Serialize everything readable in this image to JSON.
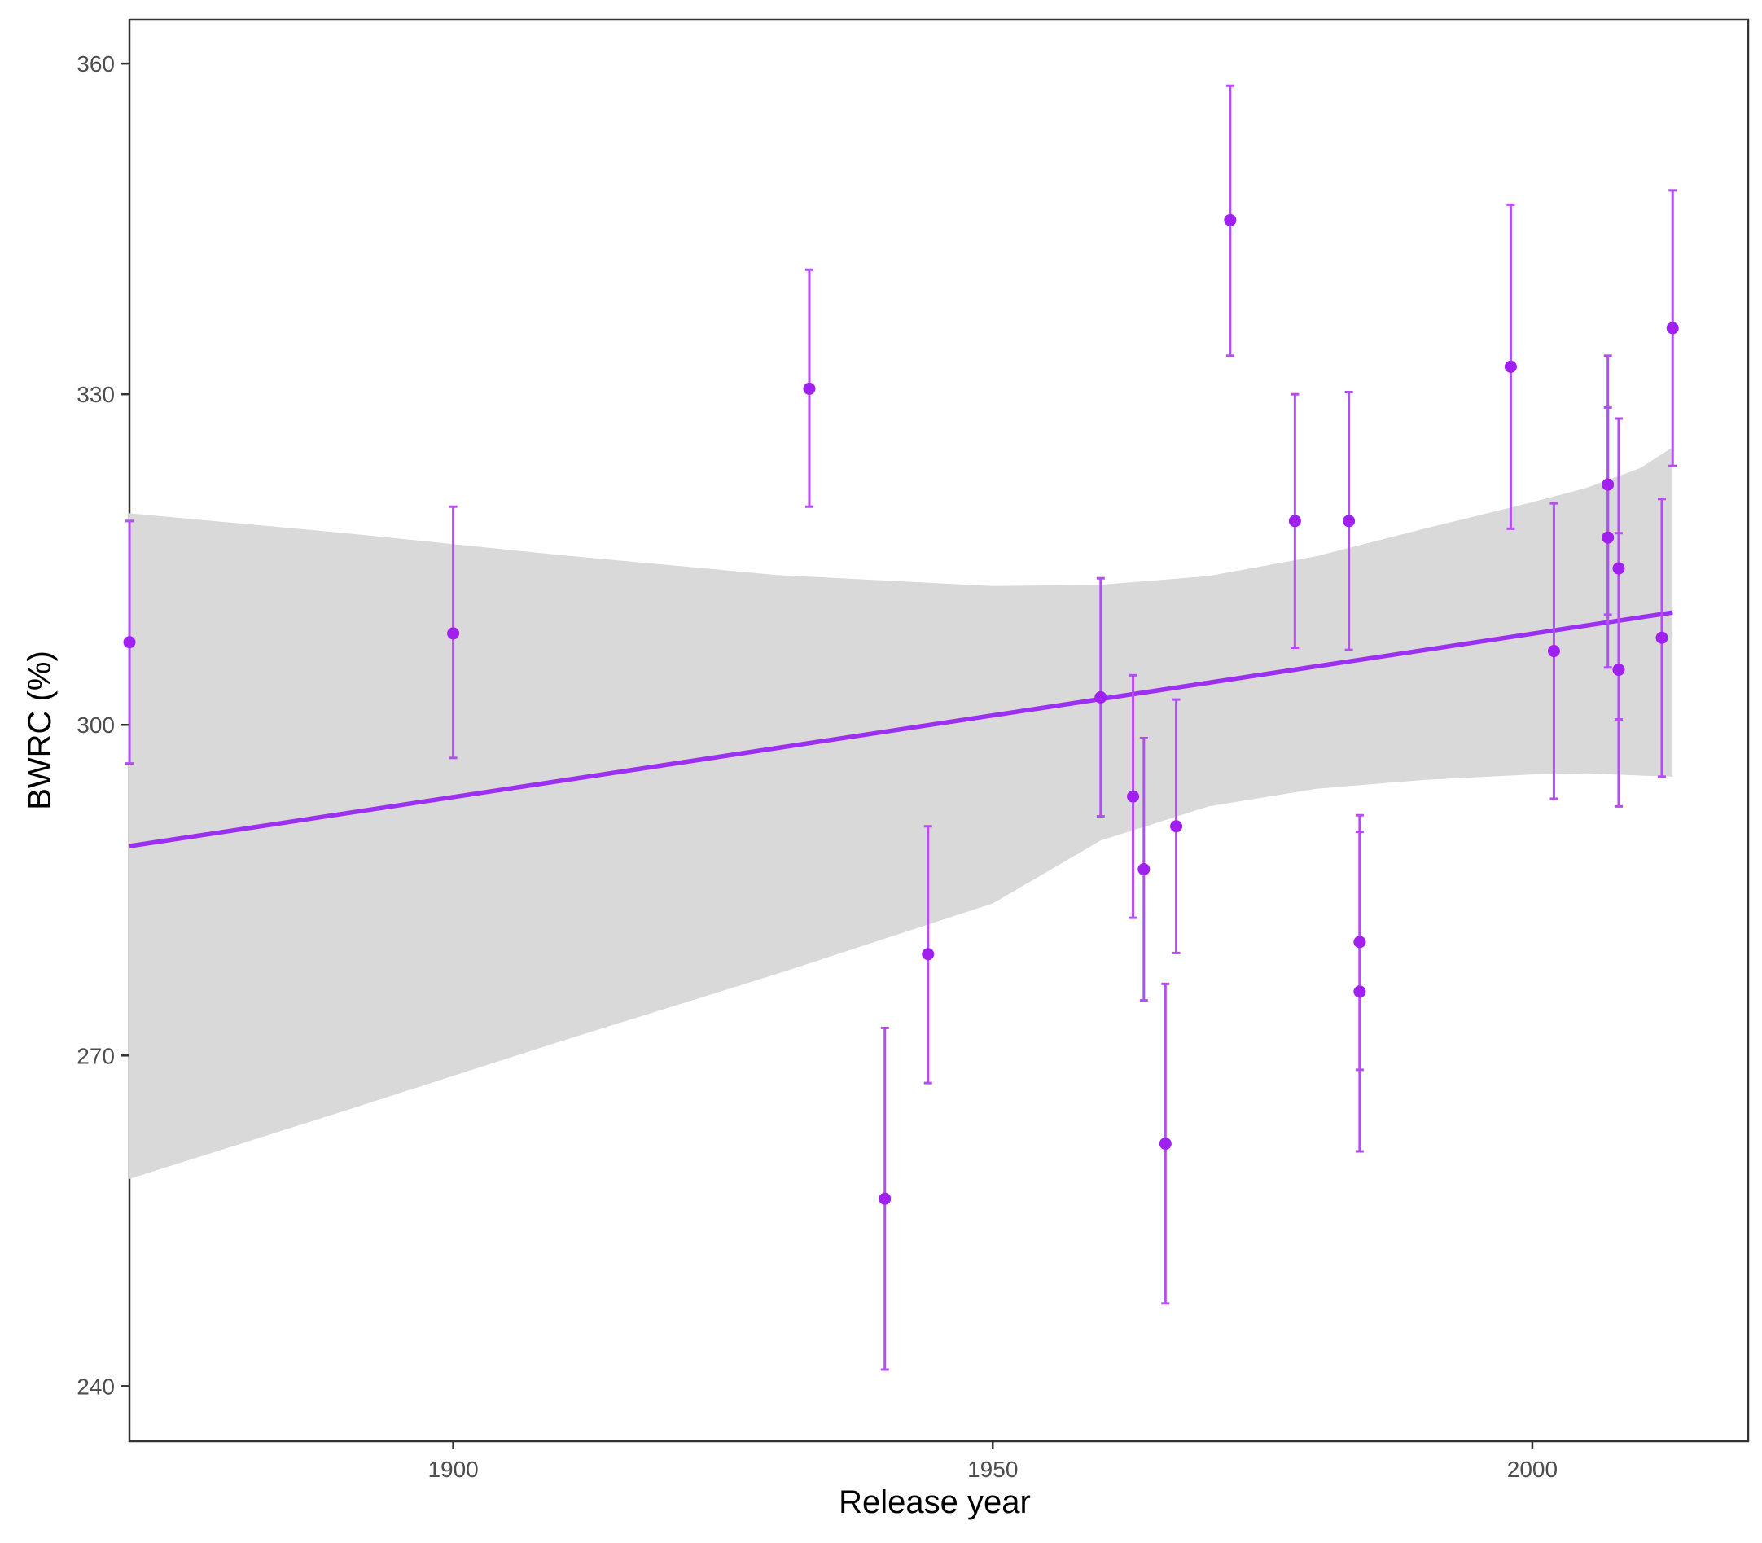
{
  "chart_data": {
    "type": "scatter",
    "xlabel": "Release year",
    "ylabel": "BWRC (%)",
    "xlim": [
      1870,
      2020
    ],
    "ylim": [
      235,
      364
    ],
    "xticks": [
      1900,
      1950,
      2000
    ],
    "yticks": [
      240,
      270,
      300,
      330,
      360
    ],
    "grid": false,
    "colors": {
      "points": "#a020f0",
      "errorbars": "#b54df5",
      "fit_line": "#9b30f0",
      "confidence_band": "#d9d9d9",
      "panel_border": "#333333"
    },
    "points": [
      {
        "x": 1870,
        "y": 307.5,
        "ymin": 296.5,
        "ymax": 318.5
      },
      {
        "x": 1900,
        "y": 308.3,
        "ymin": 297.0,
        "ymax": 319.8
      },
      {
        "x": 1933,
        "y": 330.5,
        "ymin": 319.8,
        "ymax": 341.3
      },
      {
        "x": 1940,
        "y": 257.0,
        "ymin": 241.5,
        "ymax": 272.5
      },
      {
        "x": 1944,
        "y": 279.2,
        "ymin": 267.5,
        "ymax": 290.8
      },
      {
        "x": 1960,
        "y": 302.5,
        "ymin": 291.7,
        "ymax": 313.3
      },
      {
        "x": 1963,
        "y": 293.5,
        "ymin": 282.5,
        "ymax": 304.5
      },
      {
        "x": 1964,
        "y": 286.9,
        "ymin": 275.0,
        "ymax": 298.8
      },
      {
        "x": 1966,
        "y": 262.0,
        "ymin": 247.5,
        "ymax": 276.5
      },
      {
        "x": 1967,
        "y": 290.8,
        "ymin": 279.3,
        "ymax": 302.3
      },
      {
        "x": 1972,
        "y": 345.8,
        "ymin": 333.5,
        "ymax": 358.0
      },
      {
        "x": 1978,
        "y": 318.5,
        "ymin": 307.0,
        "ymax": 330.0
      },
      {
        "x": 1983,
        "y": 318.5,
        "ymin": 306.8,
        "ymax": 330.2
      },
      {
        "x": 1984,
        "y": 280.3,
        "ymin": 268.7,
        "ymax": 291.8
      },
      {
        "x": 1984,
        "y": 275.8,
        "ymin": 261.3,
        "ymax": 290.3
      },
      {
        "x": 1998,
        "y": 332.5,
        "ymin": 317.8,
        "ymax": 347.2
      },
      {
        "x": 2002,
        "y": 306.7,
        "ymin": 293.3,
        "ymax": 320.1
      },
      {
        "x": 2007,
        "y": 321.8,
        "ymin": 310.0,
        "ymax": 333.5
      },
      {
        "x": 2007,
        "y": 317.0,
        "ymin": 305.2,
        "ymax": 328.8
      },
      {
        "x": 2008,
        "y": 314.2,
        "ymin": 300.5,
        "ymax": 327.8
      },
      {
        "x": 2008,
        "y": 305.0,
        "ymin": 292.6,
        "ymax": 317.4
      },
      {
        "x": 2012,
        "y": 307.9,
        "ymin": 295.3,
        "ymax": 320.5
      },
      {
        "x": 2013,
        "y": 336.0,
        "ymin": 323.5,
        "ymax": 348.5
      }
    ],
    "fit_line": {
      "x": [
        1870,
        2013
      ],
      "y": [
        289.0,
        310.2
      ]
    },
    "confidence_band": {
      "x": [
        1870,
        1890,
        1910,
        1930,
        1950,
        1960,
        1970,
        1980,
        1990,
        2000,
        2005,
        2010,
        2013
      ],
      "upper": [
        319.2,
        317.4,
        315.4,
        313.6,
        312.6,
        312.7,
        313.5,
        315.3,
        317.8,
        320.2,
        321.5,
        323.3,
        325.2
      ],
      "lower": [
        258.8,
        265.0,
        271.3,
        277.4,
        283.8,
        289.5,
        292.6,
        294.2,
        295.0,
        295.5,
        295.6,
        295.4,
        295.3
      ]
    }
  }
}
